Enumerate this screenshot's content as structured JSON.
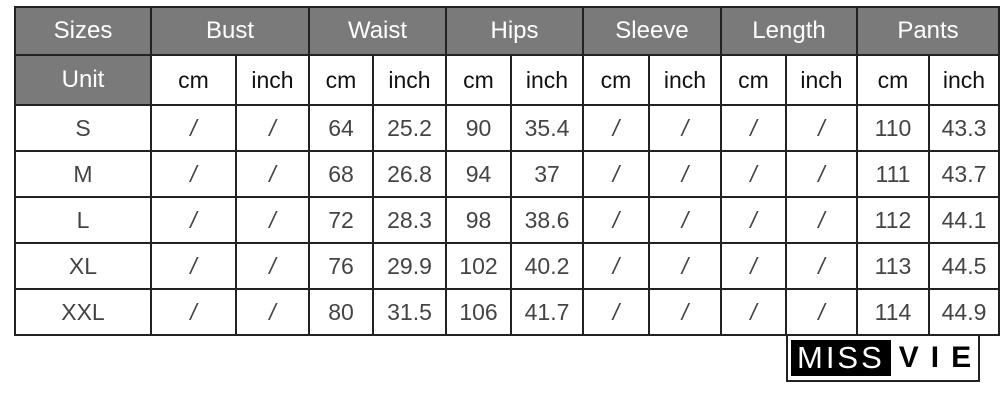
{
  "header": {
    "sizes": "Sizes",
    "unit": "Unit",
    "groups": [
      "Bust",
      "Waist",
      "Hips",
      "Sleeve",
      "Length",
      "Pants"
    ],
    "units": [
      "cm",
      "inch"
    ]
  },
  "rows": [
    {
      "size": "S",
      "values": [
        "/",
        "/",
        "64",
        "25.2",
        "90",
        "35.4",
        "/",
        "/",
        "/",
        "/",
        "110",
        "43.3"
      ]
    },
    {
      "size": "M",
      "values": [
        "/",
        "/",
        "68",
        "26.8",
        "94",
        "37",
        "/",
        "/",
        "/",
        "/",
        "111",
        "43.7"
      ]
    },
    {
      "size": "L",
      "values": [
        "/",
        "/",
        "72",
        "28.3",
        "98",
        "38.6",
        "/",
        "/",
        "/",
        "/",
        "112",
        "44.1"
      ]
    },
    {
      "size": "XL",
      "values": [
        "/",
        "/",
        "76",
        "29.9",
        "102",
        "40.2",
        "/",
        "/",
        "/",
        "/",
        "113",
        "44.5"
      ]
    },
    {
      "size": "XXL",
      "values": [
        "/",
        "/",
        "80",
        "31.5",
        "106",
        "41.7",
        "/",
        "/",
        "/",
        "/",
        "114",
        "44.9"
      ]
    }
  ],
  "watermark": {
    "part1": "MISS",
    "part2": "VIE"
  }
}
